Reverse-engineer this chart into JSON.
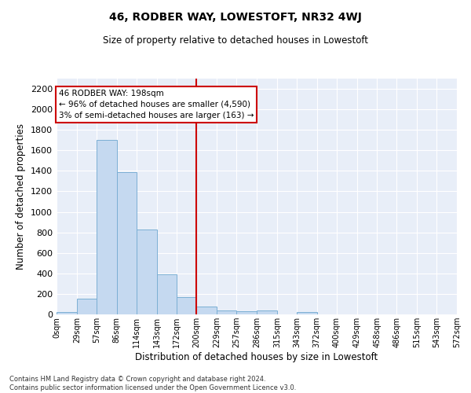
{
  "title": "46, RODBER WAY, LOWESTOFT, NR32 4WJ",
  "subtitle": "Size of property relative to detached houses in Lowestoft",
  "xlabel": "Distribution of detached houses by size in Lowestoft",
  "ylabel": "Number of detached properties",
  "bar_color": "#c5d9f0",
  "bar_edge_color": "#7bafd4",
  "background_color": "#e8eef8",
  "grid_color": "#ffffff",
  "vline_x": 200,
  "vline_color": "#cc0000",
  "annotation_text": "46 RODBER WAY: 198sqm\n← 96% of detached houses are smaller (4,590)\n3% of semi-detached houses are larger (163) →",
  "annotation_box_color": "#ffffff",
  "annotation_box_edge": "#cc0000",
  "bin_edges": [
    0,
    29,
    57,
    86,
    114,
    143,
    172,
    200,
    229,
    257,
    286,
    315,
    343,
    372,
    400,
    429,
    458,
    486,
    515,
    543,
    572
  ],
  "bar_heights": [
    20,
    150,
    1700,
    1390,
    825,
    390,
    165,
    75,
    35,
    30,
    35,
    0,
    20,
    0,
    0,
    0,
    0,
    0,
    0,
    0
  ],
  "ylim": [
    0,
    2300
  ],
  "yticks": [
    0,
    200,
    400,
    600,
    800,
    1000,
    1200,
    1400,
    1600,
    1800,
    2000,
    2200
  ],
  "footer_text": "Contains HM Land Registry data © Crown copyright and database right 2024.\nContains public sector information licensed under the Open Government Licence v3.0.",
  "tick_labels": [
    "0sqm",
    "29sqm",
    "57sqm",
    "86sqm",
    "114sqm",
    "143sqm",
    "172sqm",
    "200sqm",
    "229sqm",
    "257sqm",
    "286sqm",
    "315sqm",
    "343sqm",
    "372sqm",
    "400sqm",
    "429sqm",
    "458sqm",
    "486sqm",
    "515sqm",
    "543sqm",
    "572sqm"
  ],
  "fig_width": 6.0,
  "fig_height": 5.0
}
